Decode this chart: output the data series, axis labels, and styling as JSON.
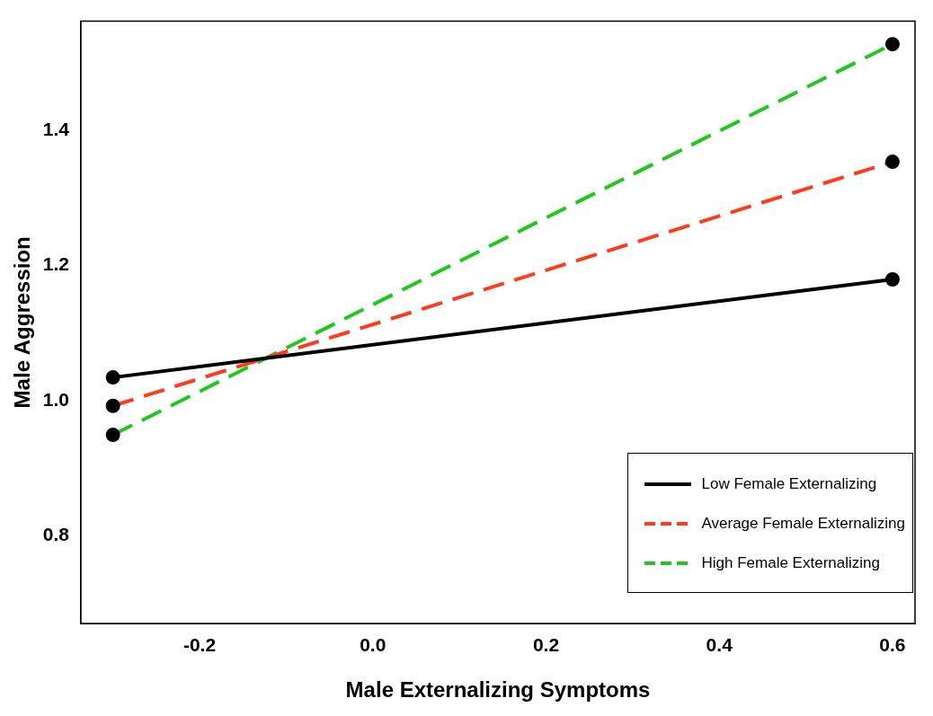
{
  "chart_data": {
    "type": "line",
    "xlabel": "Male Externalizing Symptoms",
    "ylabel": "Male Aggression",
    "x": [
      -0.3,
      0.6
    ],
    "series": [
      {
        "name": "Low Female Externalizing",
        "color": "#000000",
        "values": [
          1.034,
          1.179
        ],
        "line_style": "solid"
      },
      {
        "name": "Average Female Externalizing",
        "color": "#ff3b1f",
        "values": [
          0.992,
          1.353
        ],
        "line_style": "dashed"
      },
      {
        "name": "High Female Externalizing",
        "color": "#1fc71f",
        "values": [
          0.949,
          1.527
        ],
        "line_style": "dashed"
      }
    ],
    "xlim": [
      -0.337,
      0.626
    ],
    "xticks": [
      {
        "value": -0.2,
        "label": "-0.2"
      },
      {
        "value": 0,
        "label": "0.0"
      },
      {
        "value": 0.2,
        "label": "0.2"
      },
      {
        "value": 0.4,
        "label": "0.4"
      },
      {
        "value": 0.6,
        "label": "0.6"
      }
    ],
    "ylim": [
      0.67,
      1.561
    ],
    "yticks": [
      {
        "value": 0.8,
        "label": "0.8"
      },
      {
        "value": 1,
        "label": "1.0"
      },
      {
        "value": 1.2,
        "label": "1.2"
      },
      {
        "value": 1.4,
        "label": "1.4"
      }
    ],
    "grid": false,
    "legend": "bottom right",
    "marker": "circle"
  }
}
